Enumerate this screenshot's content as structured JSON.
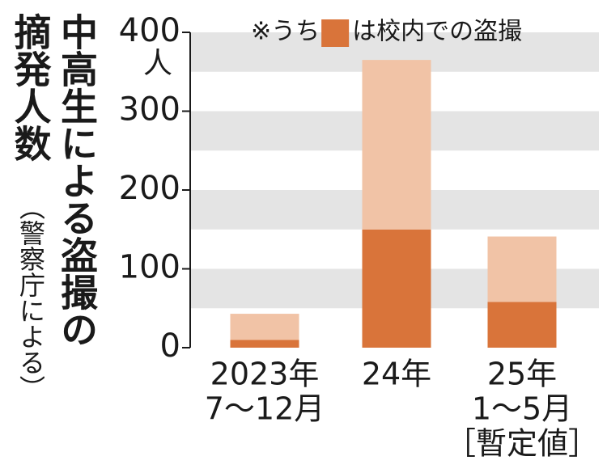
{
  "chart_data": {
    "type": "stacked_bar",
    "title": "中高生による盗撮の摘発人数",
    "subtitle": "（警察庁による）",
    "y_unit": "人",
    "legend_prefix": "※うち",
    "categories": [
      [
        "2023年",
        "7〜12月"
      ],
      [
        "24年"
      ],
      [
        "25年",
        "1〜5月",
        "［暫定値］"
      ]
    ],
    "series": [
      {
        "name": "は校内での盗撮",
        "color": "#d9743a",
        "values": [
          10,
          150,
          58
        ]
      },
      {
        "color": "#f1c3a6",
        "values": [
          33,
          215,
          83
        ]
      }
    ],
    "ylim": [
      0,
      400
    ],
    "yticks": [
      0,
      100,
      200,
      300,
      400
    ],
    "grid": true
  }
}
